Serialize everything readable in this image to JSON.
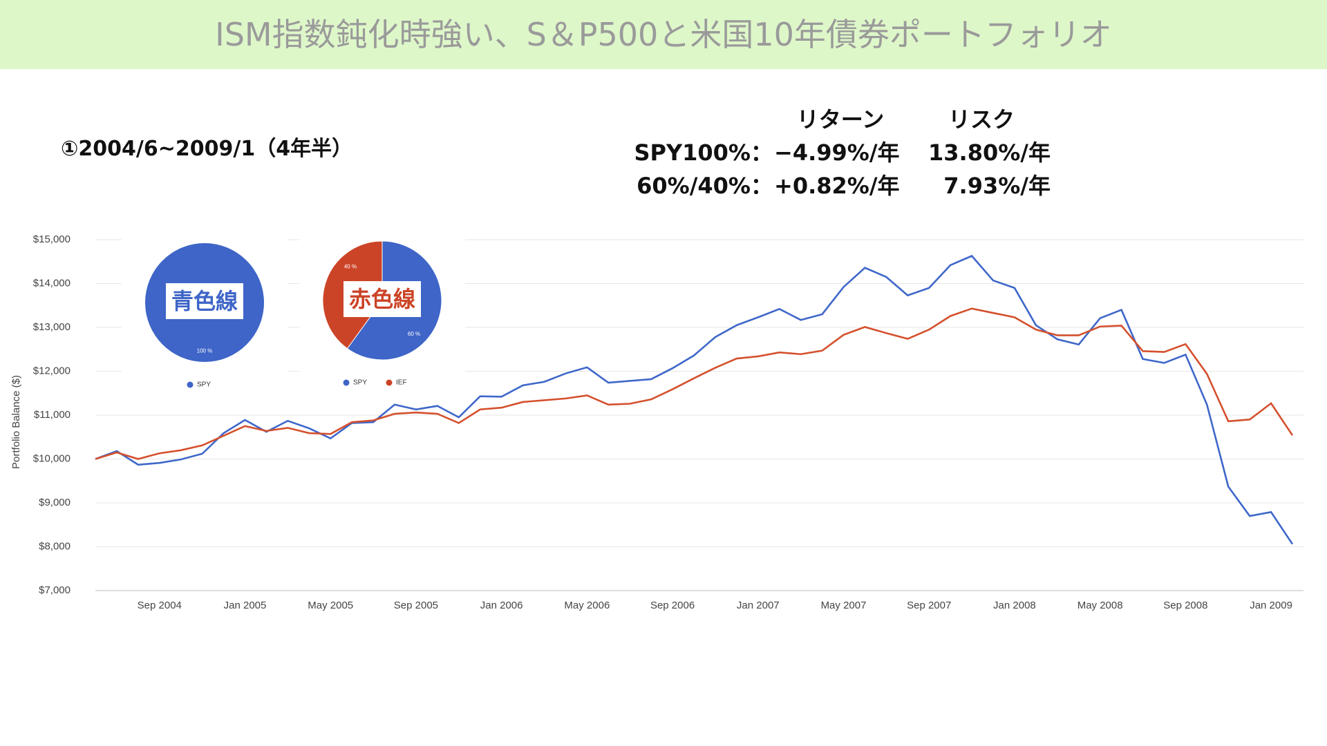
{
  "header": {
    "title": "ISM指数鈍化時強い、S＆P500と米国10年債券ポートフォリオ"
  },
  "period": "①2004/6~2009/1（4年半）",
  "stats": {
    "headers": [
      "リターン",
      "リスク"
    ],
    "rows": [
      [
        "SPY100%：",
        "−4.99%/年",
        "13.80%/年"
      ],
      [
        "60%/40%：",
        "+0.82%/年",
        "7.93%/年"
      ]
    ]
  },
  "chart_data": [
    {
      "type": "line",
      "y_label": "Portfolio Balance ($)",
      "categories": [
        null,
        null,
        null,
        "Sep 2004",
        null,
        null,
        null,
        "Jan 2005",
        null,
        null,
        null,
        "May 2005",
        null,
        null,
        null,
        "Sep 2005",
        null,
        null,
        null,
        "Jan 2006",
        null,
        null,
        null,
        "May 2006",
        null,
        null,
        null,
        "Sep 2006",
        null,
        null,
        null,
        "Jan 2007",
        null,
        null,
        null,
        "May 2007",
        null,
        null,
        null,
        "Sep 2007",
        null,
        null,
        null,
        "Jan 2008",
        null,
        null,
        null,
        "May 2008",
        null,
        null,
        null,
        "Sep 2008",
        null,
        null,
        null,
        "Jan 2009",
        null
      ],
      "series": [
        {
          "color": "#3e67c9",
          "values": [
            10000,
            10180,
            9870,
            9910,
            9990,
            10120,
            10590,
            10890,
            10620,
            10870,
            10700,
            10470,
            10820,
            10840,
            11240,
            11130,
            11210,
            10950,
            11430,
            11420,
            11680,
            11760,
            11950,
            12090,
            11740,
            11780,
            11820,
            12070,
            12360,
            12780,
            13050,
            13230,
            13420,
            13170,
            13300,
            13920,
            14360,
            14150,
            13730,
            13900,
            14420,
            14630,
            14070,
            13900,
            13050,
            12730,
            12610,
            13210,
            13400,
            12280,
            12190,
            12380,
            11240,
            9370,
            8700,
            8790,
            8060
          ]
        },
        {
          "color": "#d4502d",
          "values": [
            10000,
            10150,
            10000,
            10130,
            10200,
            10310,
            10530,
            10750,
            10640,
            10710,
            10590,
            10570,
            10840,
            10880,
            11030,
            11060,
            11030,
            10820,
            11130,
            11170,
            11300,
            11340,
            11380,
            11450,
            11240,
            11260,
            11360,
            11590,
            11840,
            12080,
            12290,
            12340,
            12430,
            12390,
            12470,
            12830,
            13010,
            12870,
            12740,
            12950,
            13260,
            13430,
            13330,
            13230,
            12950,
            12820,
            12820,
            13020,
            13040,
            12460,
            12440,
            12620,
            11940,
            10860,
            10900,
            11270,
            10540
          ]
        }
      ],
      "ylim": [
        7000,
        15000
      ],
      "yticks": [
        {
          "value": 7000,
          "label": "$7,000"
        },
        {
          "value": 8000,
          "label": "$8,000"
        },
        {
          "value": 9000,
          "label": "$9,000"
        },
        {
          "value": 10000,
          "label": "$10,000"
        },
        {
          "value": 11000,
          "label": "$11,000"
        },
        {
          "value": 12000,
          "label": "$12,000"
        },
        {
          "value": 13000,
          "label": "$13,000"
        },
        {
          "value": 14000,
          "label": "$14,000"
        },
        {
          "value": 15000,
          "label": "$15,000"
        }
      ],
      "grid": true
    },
    {
      "type": "pie",
      "annotation": "青色線",
      "categories": [
        "SPY"
      ],
      "values": [
        100
      ],
      "value_labels": [
        "100 %"
      ],
      "colors": [
        "#3e65c7"
      ]
    },
    {
      "type": "pie",
      "annotation": "赤色線",
      "categories": [
        "SPY",
        "IEF"
      ],
      "values": [
        60,
        40
      ],
      "value_labels": [
        "60 %",
        "40 %"
      ],
      "colors": [
        "#3e65c7",
        "#cc4427"
      ]
    }
  ]
}
